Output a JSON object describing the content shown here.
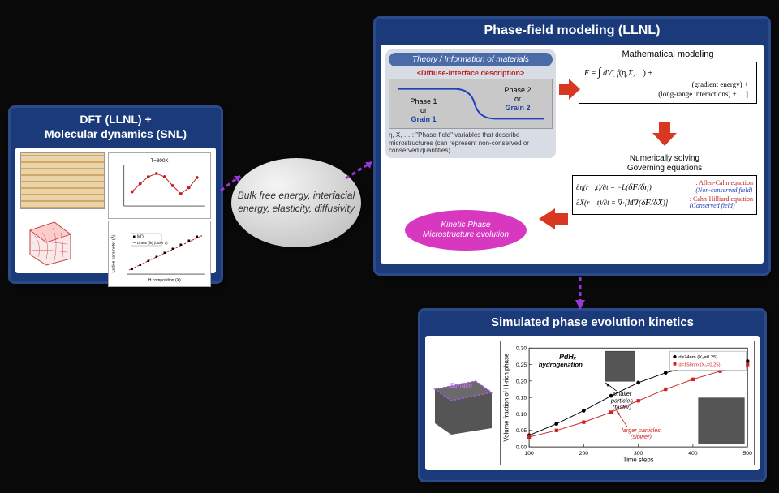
{
  "dft": {
    "title_line1": "DFT (LLNL) +",
    "title_line2": "Molecular dynamics (SNL)",
    "top_chart": {
      "label": "T=300K",
      "x_pts": [
        0.1,
        0.2,
        0.3,
        0.4,
        0.5,
        0.6,
        0.7,
        0.8,
        0.9
      ],
      "y_pts": [
        0.35,
        0.55,
        0.72,
        0.8,
        0.72,
        0.5,
        0.3,
        0.45,
        0.7
      ],
      "line_color": "#c02020",
      "point_color": "#c02020"
    },
    "bottom_chart": {
      "legend1": "MD",
      "legend2": "Linear (fit) (order 1)",
      "xlabel": "H composition (X)",
      "ylabel": "Lattice parameter (Å)",
      "line_color": "#c02020"
    }
  },
  "center": {
    "text": "Bulk free energy, interfacial energy, elasticity, diffusivity"
  },
  "pf": {
    "title": "Phase-field modeling (LLNL)",
    "theory": {
      "header": "Theory / Information of materials",
      "diffuse": "<Diffuse-interface description>",
      "phase1_a": "Phase 1",
      "phase1_b": "or",
      "phase1_c": "Grain 1",
      "phase2_a": "Phase 2",
      "phase2_b": "or",
      "phase2_c": "Grain 2",
      "caption": "η, X, … : \"Phase-field\" variables that describe microstructures (can represent non-conserved or conserved quantities)",
      "curve_color": "#2040c0"
    },
    "math": {
      "title": "Mathematical modeling",
      "line1": "F = ∫ dV[ f(η,X,…) +",
      "line2": "(gradient energy) +",
      "line3": "(long-range interactions) + …]"
    },
    "gov": {
      "title1": "Numerically solving",
      "title2": "Governing equations",
      "eq1": "∂η(r,t)/∂t = −L(δF/δη)",
      "eq1_name": ": Allen-Cahn equation",
      "eq1_type": "(Non-conserved field)",
      "eq2": "∂X(r,t)/∂t = ∇·[M∇(δF/δX)]",
      "eq2_name": ": Cahn-Hilliard equation",
      "eq2_type": "(Conserved field)"
    },
    "kinetic": {
      "line1": "Kinetic Phase",
      "line2": "Microstructure evolution"
    },
    "arrow_color": "#d83820"
  },
  "sim": {
    "title": "Simulated phase evolution kinetics",
    "cube_label": "Surface",
    "chart": {
      "title": "PdHₓ hydrogenation",
      "xlabel": "Time steps",
      "ylabel": "Volume fraction of H-rich phase",
      "xlim": [
        100,
        500
      ],
      "xtick": [
        100,
        200,
        300,
        400,
        500
      ],
      "ylim": [
        0,
        0.3
      ],
      "ytick": [
        0,
        0.05,
        0.1,
        0.15,
        0.2,
        0.25,
        0.3
      ],
      "series": [
        {
          "name": "d=74nm (X₀=0.25)",
          "color": "#000",
          "marker": "circle",
          "x": [
            100,
            150,
            200,
            250,
            300,
            350,
            400,
            450,
            500
          ],
          "y": [
            0.035,
            0.07,
            0.11,
            0.155,
            0.195,
            0.225,
            0.245,
            0.255,
            0.26
          ]
        },
        {
          "name": "d=158nm (X₀=0.25)",
          "color": "#d02020",
          "marker": "square",
          "x": [
            100,
            150,
            200,
            250,
            300,
            350,
            400,
            450,
            500
          ],
          "y": [
            0.03,
            0.05,
            0.075,
            0.105,
            0.14,
            0.175,
            0.205,
            0.23,
            0.25
          ]
        }
      ],
      "anno_small": "smaller particles (faster)",
      "anno_large": "larger particles (slower)",
      "anno_small_color": "#000",
      "anno_large_color": "#d02020"
    }
  },
  "arrows": {
    "dash_color": "#9838d8"
  }
}
